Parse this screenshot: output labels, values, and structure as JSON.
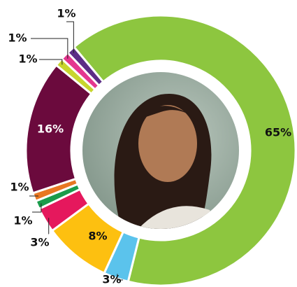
{
  "chart_data": {
    "type": "pie",
    "values": [
      65,
      3,
      8,
      3,
      1,
      1,
      16,
      1,
      1,
      1
    ],
    "value_labels": [
      "65%",
      "3%",
      "8%",
      "3%",
      "1%",
      "1%",
      "16%",
      "1%",
      "1%",
      "1%"
    ],
    "colors": [
      "#8dc63f",
      "#5bc3ec",
      "#fdc010",
      "#e5185d",
      "#1a9b4b",
      "#e87722",
      "#6b0a3d",
      "#c8d62e",
      "#e4378f",
      "#5b2d86"
    ]
  }
}
